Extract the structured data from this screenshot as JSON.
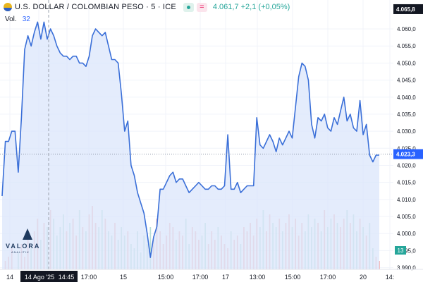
{
  "header": {
    "symbol": "U.S. DOLLAR / COLOMBIAN PESO · 5 · ICE",
    "eq_glyph": "=",
    "price_text": "4.061,7 +2,1 (+0,05%)"
  },
  "volume": {
    "label": "Vol.",
    "value": "32"
  },
  "logo": {
    "word": "VALORA",
    "sub": "ANALITIK"
  },
  "colors": {
    "line": "#3a6fd8",
    "area": "#dbe6fb",
    "vol_up": "#f4b7b7",
    "vol_down": "#b9dfd8",
    "badge": "#131722",
    "vol_badge": "#26a69a"
  },
  "chart_data": {
    "type": "area",
    "series": [
      {
        "values": [
          4011,
          4027,
          4027,
          4030,
          4030,
          4018,
          4034,
          4054,
          4058,
          4055,
          4059,
          4062,
          4057,
          4062,
          4057,
          4060,
          4058,
          4055,
          4053,
          4052,
          4052,
          4051,
          4052,
          4052,
          4050,
          4050,
          4049,
          4052,
          4058,
          4060,
          4059,
          4058,
          4059,
          4055,
          4051,
          4051,
          4050,
          4041,
          4030,
          4033,
          4020,
          4017,
          4012,
          4009,
          4006,
          4000,
          3993,
          3999,
          4002,
          4013,
          4013,
          4015,
          4017,
          4018,
          4015,
          4016,
          4016,
          4014,
          4012,
          4013,
          4014,
          4015,
          4014,
          4013,
          4013,
          4014,
          4014,
          4013,
          4013,
          4014,
          4029,
          4013,
          4013,
          4015,
          4012,
          4013,
          4014,
          4014,
          4014,
          4034,
          4026,
          4025,
          4027,
          4029,
          4027,
          4024,
          4028,
          4026,
          4028,
          4030,
          4028,
          4037,
          4046,
          4050,
          4049,
          4045,
          4032,
          4028,
          4034,
          4033,
          4035,
          4031,
          4030,
          4034,
          4032,
          4036,
          4040,
          4033,
          4035,
          4031,
          4030,
          4039,
          4029,
          4032,
          4023,
          4021,
          4023,
          4023
        ]
      }
    ],
    "x_tick_labels": [
      "14",
      "14 Ago '25",
      "14:45",
      "17:00",
      "15",
      "15:00",
      "17:00",
      "17",
      "13:00",
      "15:00",
      "17:00",
      "20",
      "14:"
    ],
    "y_tick_labels": [
      "4.060,0",
      "4.055,0",
      "4.050,0",
      "4.045,0",
      "4.040,0",
      "4.035,0",
      "4.030,0",
      "4.025,0",
      "4.020,0",
      "4.015,0",
      "4.010,0",
      "4.005,0",
      "4.000,0",
      "3.995,0",
      "3.990,0"
    ],
    "y_ticks": [
      4060,
      4055,
      4050,
      4045,
      4040,
      4035,
      4030,
      4025,
      4020,
      4015,
      4010,
      4005,
      4000,
      3995,
      3990
    ],
    "price_badge_top": "4.065,8",
    "price_badge_top_value": 4065.8,
    "price_badge_last": "4.023,3",
    "price_badge_last_value": 4023.3,
    "volume_badge": "13",
    "ylim": [
      3989.5,
      4066
    ],
    "volume": [
      0,
      2,
      3,
      5,
      0,
      4,
      6,
      3,
      8,
      5,
      9,
      12,
      7,
      11,
      10,
      14,
      12,
      8,
      10,
      13,
      9,
      11,
      12,
      8,
      14,
      10,
      9,
      13,
      15,
      11,
      10,
      14,
      12,
      9,
      8,
      11,
      7,
      10,
      8,
      9,
      6,
      5,
      9,
      4,
      8,
      6,
      10,
      7,
      12,
      9,
      6,
      8,
      11,
      10,
      7,
      9,
      8,
      12,
      6,
      10,
      9,
      7,
      8,
      11,
      6,
      9,
      7,
      10,
      8,
      6,
      5,
      9,
      7,
      8,
      6,
      10,
      9,
      11,
      8,
      12,
      10,
      14,
      9,
      13,
      11,
      10,
      12,
      9,
      11,
      13,
      10,
      12,
      8,
      11,
      9,
      13,
      10,
      12,
      11,
      9,
      14,
      10,
      12,
      13,
      11,
      10,
      12,
      14,
      11,
      13,
      9,
      12,
      10,
      8,
      11,
      5,
      3,
      2
    ]
  }
}
